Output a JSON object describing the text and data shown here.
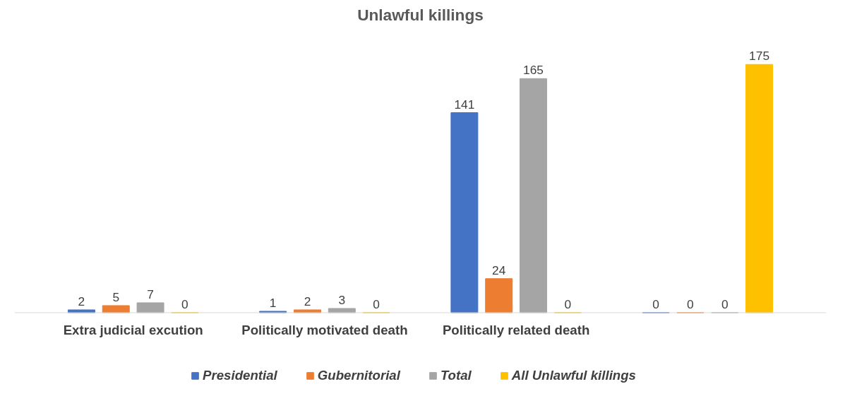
{
  "chart_data": {
    "type": "bar",
    "title": "Unlawful killings",
    "categories": [
      "Extra judicial excution",
      "Politically motivated death",
      "Politically related death",
      null
    ],
    "series": [
      {
        "name": "Presidential",
        "color": "#4472c4",
        "values": [
          2,
          1,
          141,
          0
        ]
      },
      {
        "name": "Gubernitorial",
        "color": "#ed7d31",
        "values": [
          5,
          2,
          24,
          0
        ]
      },
      {
        "name": "Total",
        "color": "#a5a5a5",
        "values": [
          7,
          3,
          165,
          0
        ]
      },
      {
        "name": "All Unlawful killings",
        "color": "#ffc000",
        "values": [
          0,
          0,
          0,
          175
        ]
      }
    ],
    "data_labels": true,
    "grid": false,
    "legend": "bottom"
  }
}
